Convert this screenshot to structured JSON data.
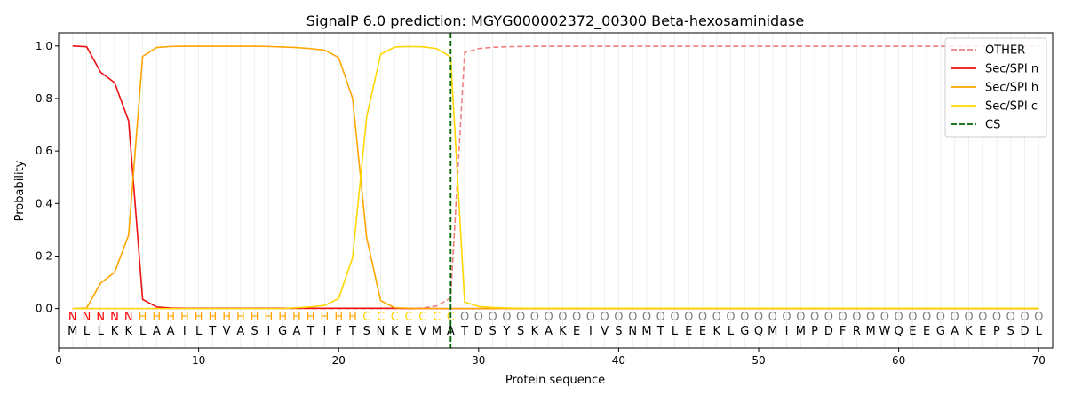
{
  "chart_data": {
    "type": "line",
    "title": "SignalP 6.0 prediction: MGYG000002372_00300 Beta-hexosaminidase",
    "xlabel": "Protein sequence",
    "ylabel": "Probability",
    "xlim": [
      0,
      71
    ],
    "ylim": [
      -0.15,
      1.05
    ],
    "xticks": [
      0,
      10,
      20,
      30,
      40,
      50,
      60,
      70
    ],
    "yticks": [
      0.0,
      0.2,
      0.4,
      0.6,
      0.8,
      1.0
    ],
    "grid": "vertical lines at each residue position",
    "legend_position": "top-right",
    "sequence": [
      "M",
      "L",
      "L",
      "K",
      "K",
      "L",
      "A",
      "A",
      "I",
      "L",
      "T",
      "V",
      "A",
      "S",
      "I",
      "G",
      "A",
      "T",
      "I",
      "F",
      "T",
      "S",
      "N",
      "K",
      "E",
      "V",
      "M",
      "A",
      "T",
      "D",
      "S",
      "Y",
      "S",
      "K",
      "A",
      "K",
      "E",
      "I",
      "V",
      "S",
      "N",
      "M",
      "T",
      "L",
      "E",
      "E",
      "K",
      "L",
      "G",
      "Q",
      "M",
      "I",
      "M",
      "P",
      "D",
      "F",
      "R",
      "M",
      "W",
      "Q",
      "E",
      "E",
      "G",
      "A",
      "K",
      "E",
      "P",
      "S",
      "D",
      "L"
    ],
    "labels": [
      "N",
      "N",
      "N",
      "N",
      "N",
      "H",
      "H",
      "H",
      "H",
      "H",
      "H",
      "H",
      "H",
      "H",
      "H",
      "H",
      "H",
      "H",
      "H",
      "H",
      "H",
      "C",
      "C",
      "C",
      "C",
      "C",
      "C",
      "C",
      "O",
      "O",
      "O",
      "O",
      "O",
      "O",
      "O",
      "O",
      "O",
      "O",
      "O",
      "O",
      "O",
      "O",
      "O",
      "O",
      "O",
      "O",
      "O",
      "O",
      "O",
      "O",
      "O",
      "O",
      "O",
      "O",
      "O",
      "O",
      "O",
      "O",
      "O",
      "O",
      "O",
      "O",
      "O",
      "O",
      "O",
      "O",
      "O",
      "O",
      "O",
      "O"
    ],
    "label_colors": {
      "N": "#ff0000",
      "H": "#ffa500",
      "C": "#ffd700",
      "O": "#808080"
    },
    "cleavage_site": 28,
    "series": [
      {
        "name": "OTHER",
        "color": "#f08080",
        "dash": "dashed",
        "values": [
          0.0,
          0.0,
          0.0,
          0.0,
          0.0,
          0.0,
          0.0,
          0.0,
          0.0,
          0.0,
          0.0,
          0.0,
          0.0,
          0.0,
          0.0,
          0.0,
          0.0,
          0.0,
          0.0,
          0.0,
          0.0,
          0.0,
          0.0,
          0.0,
          0.0,
          0.002,
          0.01,
          0.04,
          0.975,
          0.99,
          0.995,
          0.997,
          0.998,
          0.999,
          0.999,
          0.999,
          0.999,
          0.999,
          0.999,
          0.999,
          0.999,
          0.999,
          0.999,
          0.999,
          0.999,
          0.999,
          0.999,
          0.999,
          0.999,
          0.999,
          0.999,
          0.999,
          0.999,
          0.999,
          0.999,
          0.999,
          0.999,
          0.999,
          0.999,
          0.999,
          0.999,
          0.999,
          0.999,
          0.999,
          0.999,
          0.999,
          0.999,
          0.999,
          0.999,
          0.999
        ]
      },
      {
        "name": "Sec/SPI n",
        "color": "#ee1111",
        "dash": "solid",
        "values": [
          1.0,
          0.997,
          0.9,
          0.86,
          0.715,
          0.035,
          0.006,
          0.002,
          0.001,
          0.001,
          0.001,
          0.001,
          0.001,
          0.001,
          0.001,
          0.001,
          0.001,
          0.001,
          0.001,
          0.001,
          0.001,
          0.001,
          0.001,
          0.001,
          0.0,
          0.0,
          0.0,
          0.0,
          0.0,
          0.0,
          0.0,
          0.0,
          0.0,
          0.0,
          0.0,
          0.0,
          0.0,
          0.0,
          0.0,
          0.0,
          0.0,
          0.0,
          0.0,
          0.0,
          0.0,
          0.0,
          0.0,
          0.0,
          0.0,
          0.0,
          0.0,
          0.0,
          0.0,
          0.0,
          0.0,
          0.0,
          0.0,
          0.0,
          0.0,
          0.0,
          0.0,
          0.0,
          0.0,
          0.0,
          0.0,
          0.0,
          0.0,
          0.0,
          0.0,
          0.0
        ]
      },
      {
        "name": "Sec/SPI h",
        "color": "#ffa500",
        "dash": "solid",
        "values": [
          0.0,
          0.002,
          0.097,
          0.138,
          0.28,
          0.96,
          0.994,
          0.998,
          0.999,
          0.999,
          0.999,
          0.999,
          0.999,
          0.999,
          0.998,
          0.996,
          0.994,
          0.99,
          0.984,
          0.956,
          0.8,
          0.27,
          0.03,
          0.003,
          0.001,
          0.0,
          0.0,
          0.0,
          0.0,
          0.0,
          0.0,
          0.0,
          0.0,
          0.0,
          0.0,
          0.0,
          0.0,
          0.0,
          0.0,
          0.0,
          0.0,
          0.0,
          0.0,
          0.0,
          0.0,
          0.0,
          0.0,
          0.0,
          0.0,
          0.0,
          0.0,
          0.0,
          0.0,
          0.0,
          0.0,
          0.0,
          0.0,
          0.0,
          0.0,
          0.0,
          0.0,
          0.0,
          0.0,
          0.0,
          0.0,
          0.0,
          0.0,
          0.0,
          0.0,
          0.0
        ]
      },
      {
        "name": "Sec/SPI c",
        "color": "#ffd700",
        "dash": "solid",
        "values": [
          0.0,
          0.0,
          0.0,
          0.0,
          0.0,
          0.0,
          0.0,
          0.0,
          0.0,
          0.0,
          0.0,
          0.0,
          0.0,
          0.0,
          0.0,
          0.0,
          0.003,
          0.006,
          0.012,
          0.038,
          0.195,
          0.73,
          0.968,
          0.996,
          0.998,
          0.997,
          0.99,
          0.958,
          0.025,
          0.008,
          0.004,
          0.002,
          0.001,
          0.001,
          0.001,
          0.001,
          0.001,
          0.001,
          0.001,
          0.001,
          0.001,
          0.001,
          0.001,
          0.001,
          0.001,
          0.001,
          0.001,
          0.001,
          0.001,
          0.001,
          0.001,
          0.001,
          0.001,
          0.001,
          0.001,
          0.001,
          0.001,
          0.001,
          0.001,
          0.001,
          0.001,
          0.001,
          0.001,
          0.001,
          0.001,
          0.001,
          0.001,
          0.001,
          0.001,
          0.001
        ]
      },
      {
        "name": "CS",
        "color": "#006400",
        "dash": "dashed"
      }
    ]
  }
}
